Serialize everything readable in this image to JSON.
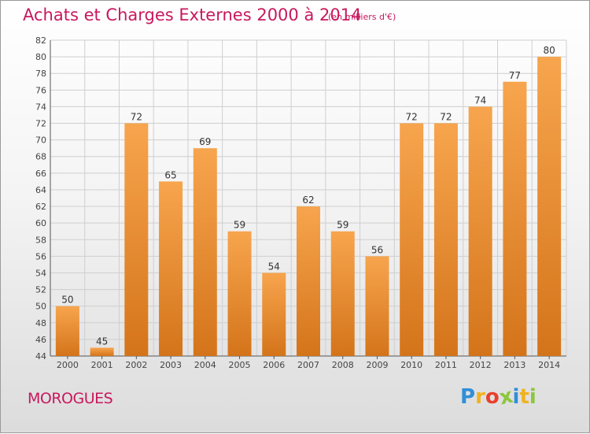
{
  "title": "Achats et Charges Externes 2000 à 2014",
  "subtitle": "(en milliers d'€)",
  "place": "MOROGUES",
  "logo": {
    "text": "Proxiti",
    "letters": [
      {
        "ch": "P",
        "color": "#2f8fd8"
      },
      {
        "ch": "r",
        "color": "#f0b21f"
      },
      {
        "ch": "o",
        "color": "#e8402c"
      },
      {
        "ch": "x",
        "color": "#8cc63e"
      },
      {
        "ch": "i",
        "color": "#2f8fd8"
      },
      {
        "ch": "t",
        "color": "#f0b21f"
      },
      {
        "ch": "i",
        "color": "#8cc63e"
      }
    ]
  },
  "colors": {
    "accent": "#c8185e",
    "bar_light": "#f7a54e",
    "bar_dark": "#d4741a",
    "grid": "#cfcfcf"
  },
  "chart_data": {
    "type": "bar",
    "categories": [
      "2000",
      "2001",
      "2002",
      "2003",
      "2004",
      "2005",
      "2006",
      "2007",
      "2008",
      "2009",
      "2010",
      "2011",
      "2012",
      "2013",
      "2014"
    ],
    "values": [
      50,
      45,
      72,
      65,
      69,
      59,
      54,
      62,
      59,
      56,
      72,
      72,
      74,
      77,
      80
    ],
    "ylim": [
      44,
      82
    ],
    "yticks": [
      44,
      46,
      48,
      50,
      52,
      54,
      56,
      58,
      60,
      62,
      64,
      66,
      68,
      70,
      72,
      74,
      76,
      78,
      80,
      82
    ],
    "grid": true,
    "data_labels": true
  }
}
